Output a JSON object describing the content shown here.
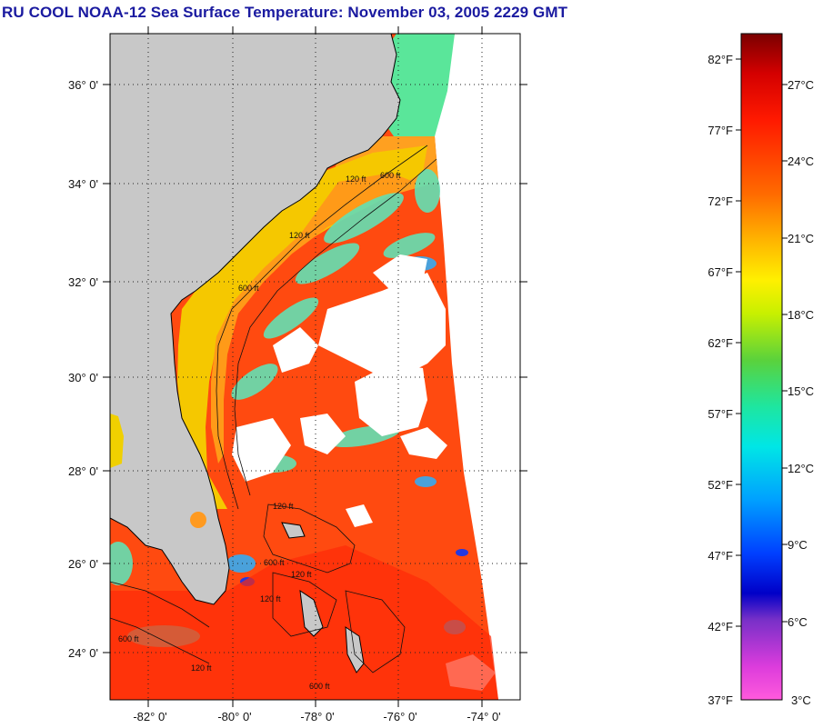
{
  "title": "RU COOL  NOAA-12  Sea Surface Temperature:  November 03, 2005 2229 GMT",
  "map": {
    "lat_labels": [
      "36° 0'",
      "34° 0'",
      "32° 0'",
      "30° 0'",
      "28° 0'",
      "26° 0'",
      "24° 0'"
    ],
    "lon_labels": [
      "-82° 0'",
      "-80° 0'",
      "-78° 0'",
      "-76° 0'",
      "-74° 0'"
    ],
    "isobath_labels": [
      "120 ft",
      "600 ft",
      "120 ft",
      "600 ft",
      "120 ft",
      "120 ft",
      "600 ft",
      "120 ft",
      "120 ft",
      "600 ft",
      "600 ft"
    ],
    "colors": {
      "land": "#c8c8c8",
      "cloud": "#ffffff",
      "warm_water": "#ff3c00",
      "shelf_water": "#f0c800"
    }
  },
  "colorbar": {
    "fahrenheit_labels": [
      "82°F",
      "77°F",
      "72°F",
      "67°F",
      "62°F",
      "57°F",
      "52°F",
      "47°F",
      "42°F",
      "37°F"
    ],
    "celsius_labels": [
      "27°C",
      "24°C",
      "21°C",
      "18°C",
      "15°C",
      "12°C",
      "9°C",
      "6°C",
      "3°C"
    ],
    "scale_colors": [
      "#8c0000",
      "#ff0000",
      "#ff7800",
      "#ffdc00",
      "#c8ff00",
      "#32c832",
      "#00e6c8",
      "#00c8ff",
      "#0050ff",
      "#0000c8",
      "#a028c8",
      "#ff50dc"
    ]
  }
}
